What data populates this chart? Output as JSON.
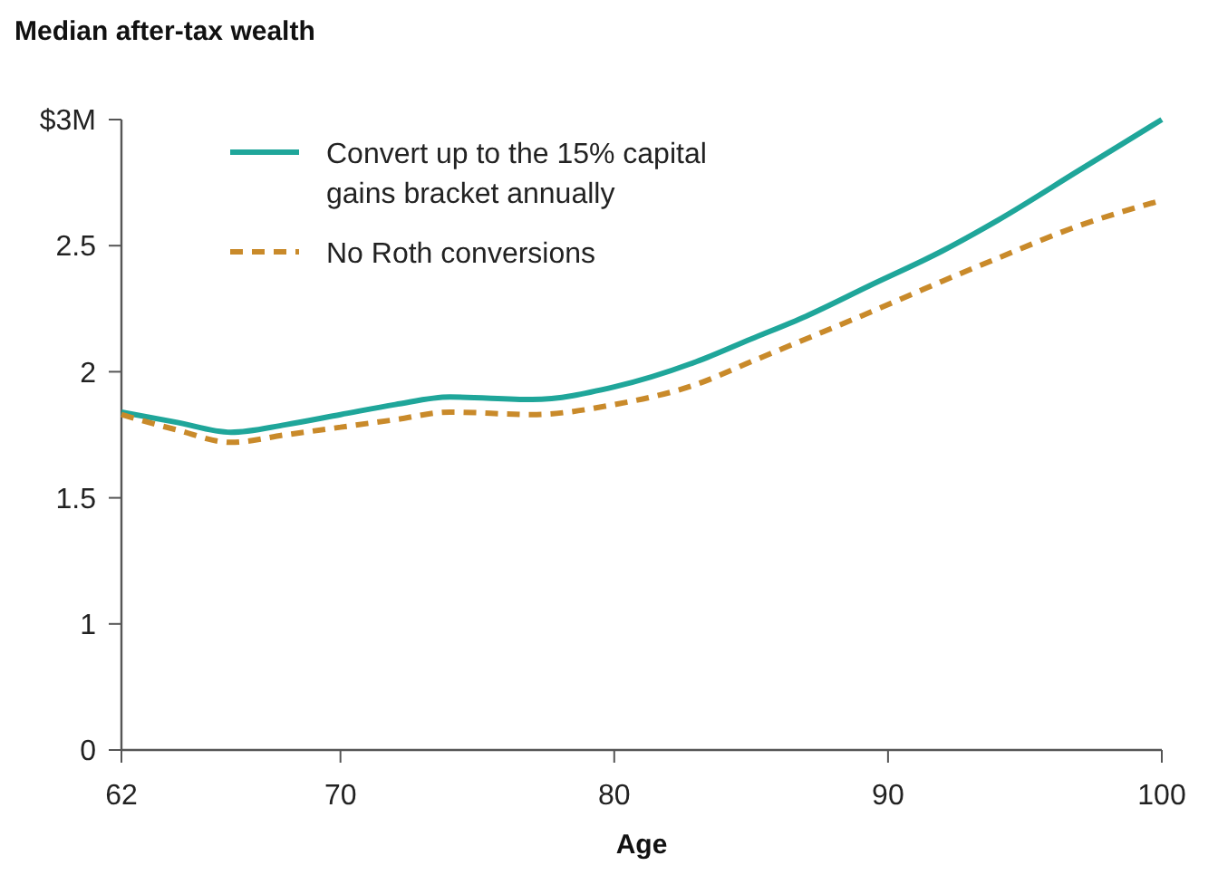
{
  "chart_data": {
    "type": "line",
    "title": "Median after-tax wealth",
    "xlabel": "Age",
    "xlim": [
      62,
      100
    ],
    "xticks": [
      62,
      70,
      80,
      90,
      100
    ],
    "ylim": [
      0.5,
      3
    ],
    "yticks": [
      {
        "value": 0.5,
        "label": "0"
      },
      1,
      1.5,
      2,
      2.5,
      {
        "value": 3,
        "label": "$3M"
      }
    ],
    "legend": "top left",
    "grid": false,
    "series": [
      {
        "name": "Convert up to the 15% capital gains bracket annually",
        "color": "#1fa69a",
        "line_style": "solid",
        "x": [
          62,
          64,
          66,
          68,
          70,
          72,
          74,
          77,
          80,
          83,
          85,
          87,
          89.3,
          92,
          94,
          97,
          100
        ],
        "values": [
          1.84,
          1.8,
          1.76,
          1.79,
          1.83,
          1.87,
          1.9,
          1.89,
          1.94,
          2.04,
          2.13,
          2.22,
          2.34,
          2.48,
          2.6,
          2.8,
          3.0
        ]
      },
      {
        "name": "No Roth conversions",
        "color": "#c98a2a",
        "line_style": "dashed",
        "x": [
          62,
          64,
          66,
          68,
          70,
          72,
          74,
          77,
          80,
          83,
          85,
          87,
          89,
          92,
          94,
          97,
          100
        ],
        "values": [
          1.83,
          1.77,
          1.72,
          1.75,
          1.78,
          1.81,
          1.84,
          1.83,
          1.87,
          1.95,
          2.04,
          2.13,
          2.22,
          2.36,
          2.45,
          2.58,
          2.68
        ]
      }
    ]
  }
}
